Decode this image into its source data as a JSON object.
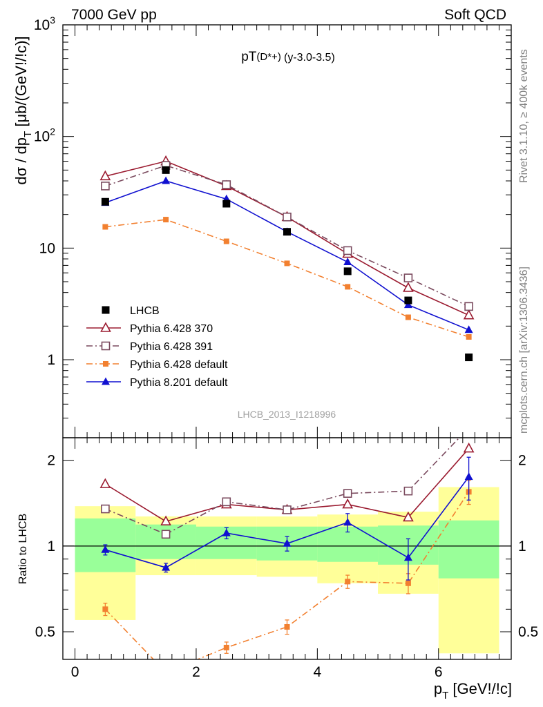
{
  "header": {
    "left": "7000 GeV pp",
    "right": "Soft QCD"
  },
  "side_labels": {
    "top": "Rivet 3.1.10, ≥ 400k events",
    "bottom": "mcplots.cern.ch [arXiv:1306.3436]"
  },
  "chart_data": [
    {
      "type": "line",
      "title": "pT(D*+) (y-3.0-3.5)",
      "title_main": "pT",
      "title_sub": "(D*+)",
      "title_tail": "(y-3.0-3.5)",
      "ylabel": "dσ / dp_T [μb/(GeV!/!c)]",
      "yscale": "log",
      "ylim": [
        0.2,
        1000
      ],
      "xlim": [
        -0.2,
        7.2
      ],
      "yticks": [
        {
          "value": 1,
          "label": "1"
        },
        {
          "value": 10,
          "label": "10"
        },
        {
          "value": 100,
          "label": "10^2"
        },
        {
          "value": 1000,
          "label": "10^3"
        }
      ],
      "analysis_label": "LHCB_2013_I1218996",
      "legend_position": "bottom-left",
      "x": [
        0.5,
        1.5,
        2.5,
        3.5,
        4.5,
        5.5,
        6.5
      ],
      "series": [
        {
          "name": "LHCB",
          "color": "#000000",
          "marker": "square-filled",
          "line": "none",
          "values": [
            26.0,
            50.0,
            25.0,
            14.0,
            6.2,
            3.4,
            1.05
          ]
        },
        {
          "name": "Pythia 6.428 370",
          "color": "#9b1b30",
          "marker": "triangle-open",
          "line": "solid",
          "values": [
            44.0,
            60.0,
            36.0,
            19.0,
            8.9,
            4.4,
            2.5
          ]
        },
        {
          "name": "Pythia 6.428 391",
          "color": "#7a4a5e",
          "marker": "square-open",
          "line": "dashdot",
          "values": [
            36.0,
            55.0,
            37.0,
            19.0,
            9.5,
            5.4,
            3.0
          ]
        },
        {
          "name": "Pythia 6.428 default",
          "color": "#f28030",
          "marker": "square-filled-small",
          "line": "dashdot",
          "values": [
            15.5,
            18.0,
            11.5,
            7.3,
            4.5,
            2.4,
            1.6
          ]
        },
        {
          "name": "Pythia 8.201 default",
          "color": "#1010d0",
          "marker": "triangle-filled",
          "line": "solid",
          "values": [
            25.5,
            40.0,
            27.5,
            14.0,
            7.5,
            3.1,
            1.85
          ]
        }
      ]
    },
    {
      "type": "line",
      "ylabel": "Ratio to LHCB",
      "yscale": "log",
      "ylim": [
        0.4,
        2.4
      ],
      "xlim": [
        -0.2,
        7.2
      ],
      "xlabel": "p_T [GeV!/!c]",
      "xticks": [
        0,
        2,
        4,
        6
      ],
      "yticks": [
        {
          "value": 0.5,
          "label": "0.5"
        },
        {
          "value": 1,
          "label": "1"
        },
        {
          "value": 2,
          "label": "2"
        }
      ],
      "reference_line": 1,
      "x": [
        0.5,
        1.5,
        2.5,
        3.5,
        4.5,
        5.5,
        6.5
      ],
      "bands": {
        "bin_edges": [
          0,
          1,
          2,
          3,
          4,
          5,
          6,
          7
        ],
        "green": {
          "color": "#99ff99",
          "low": [
            0.81,
            0.9,
            0.9,
            0.89,
            0.88,
            0.86,
            0.77
          ],
          "high": [
            1.25,
            1.19,
            1.17,
            1.17,
            1.17,
            1.18,
            1.23
          ]
        },
        "yellow": {
          "color": "#ffff99",
          "low": [
            0.55,
            0.79,
            0.79,
            0.78,
            0.74,
            0.68,
            0.42
          ],
          "high": [
            1.38,
            1.27,
            1.27,
            1.27,
            1.29,
            1.32,
            1.61
          ]
        }
      },
      "series": [
        {
          "name": "Pythia 6.428 370",
          "color": "#9b1b30",
          "marker": "triangle-open",
          "line": "solid",
          "values": [
            1.65,
            1.22,
            1.4,
            1.34,
            1.4,
            1.26,
            2.2
          ]
        },
        {
          "name": "Pythia 6.428 391",
          "color": "#7a4a5e",
          "marker": "square-open",
          "line": "dashdot",
          "values": [
            1.35,
            1.1,
            1.43,
            1.34,
            1.53,
            1.56,
            2.6
          ]
        },
        {
          "name": "Pythia 6.428 default",
          "color": "#f28030",
          "marker": "square-filled-small",
          "line": "dashdot",
          "values": [
            0.6,
            0.36,
            0.44,
            0.52,
            0.75,
            0.74,
            1.55
          ],
          "err_low": [
            0.03,
            0.02,
            0.02,
            0.03,
            0.04,
            0.06,
            0.15
          ],
          "err_high": [
            0.03,
            0.02,
            0.02,
            0.03,
            0.04,
            0.06,
            0.15
          ]
        },
        {
          "name": "Pythia 8.201 default",
          "color": "#1010d0",
          "marker": "triangle-filled",
          "line": "solid",
          "values": [
            0.97,
            0.84,
            1.11,
            1.02,
            1.21,
            0.91,
            1.75
          ],
          "err_low": [
            0.04,
            0.03,
            0.05,
            0.06,
            0.09,
            0.15,
            0.3
          ],
          "err_high": [
            0.04,
            0.03,
            0.05,
            0.06,
            0.09,
            0.15,
            0.3
          ]
        }
      ]
    }
  ]
}
